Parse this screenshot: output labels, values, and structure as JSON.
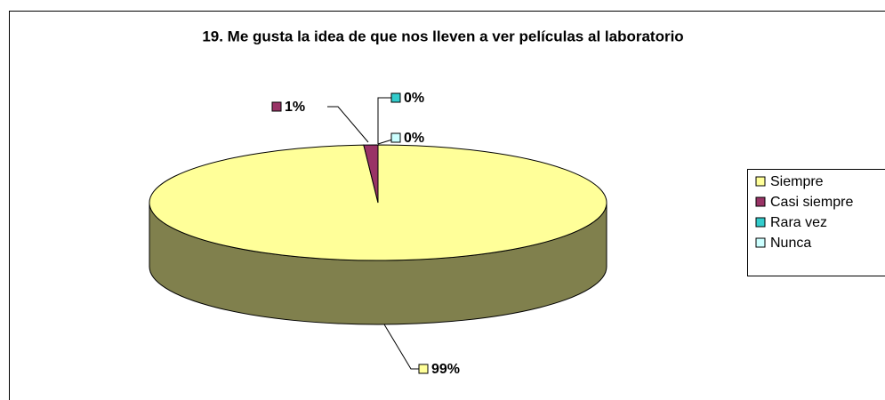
{
  "chart_data": {
    "type": "pie3d",
    "title": "19. Me gusta la idea de que nos lleven a ver películas al laboratorio",
    "categories": [
      "Siempre",
      "Casi siempre",
      "Rara vez",
      "Nunca"
    ],
    "values": [
      99,
      1,
      0,
      0
    ],
    "value_labels": [
      "99%",
      "1%",
      "0%",
      "0%"
    ],
    "colors": [
      "#ffff99",
      "#993366",
      "#33cccc",
      "#ccffff"
    ],
    "legend": "right"
  }
}
